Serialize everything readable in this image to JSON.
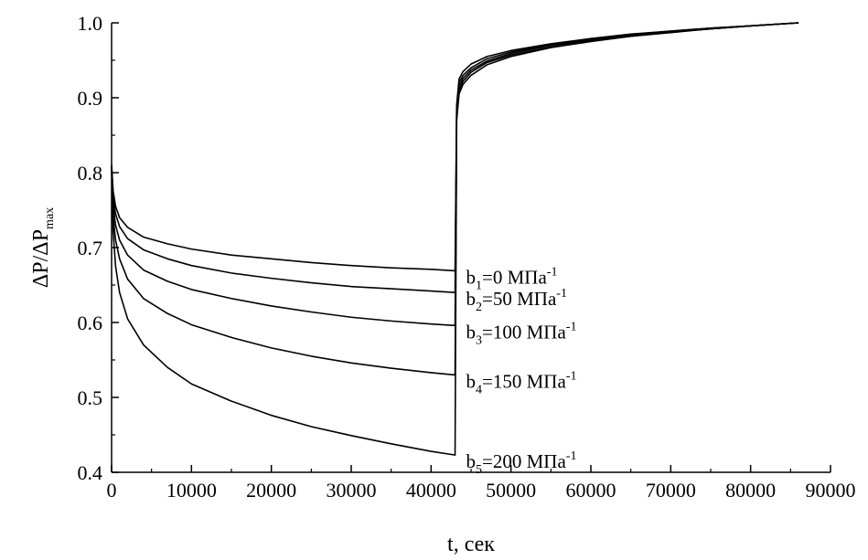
{
  "chart_data": {
    "type": "line",
    "title": "",
    "xlabel": "t, сек",
    "ylabel": {
      "main": "ΔP/ΔP",
      "sub": "max"
    },
    "xlim": [
      0,
      90000
    ],
    "ylim": [
      0.4,
      1.0
    ],
    "x_ticks": [
      0,
      10000,
      20000,
      30000,
      40000,
      50000,
      60000,
      70000,
      80000,
      90000
    ],
    "y_ticks": [
      0.4,
      0.5,
      0.6,
      0.7,
      0.8,
      0.9,
      1.0
    ],
    "y_tick_labels": [
      "0.4",
      "0.5",
      "0.6",
      "0.7",
      "0.8",
      "0.9",
      "1.0"
    ],
    "grid": false,
    "line_color": "#000000",
    "series": [
      {
        "label": {
          "base": "b",
          "index": "1",
          "text": "=0 МПа",
          "exp": "-1"
        },
        "points": [
          [
            0,
            0.81
          ],
          [
            200,
            0.775
          ],
          [
            500,
            0.755
          ],
          [
            1000,
            0.74
          ],
          [
            2000,
            0.727
          ],
          [
            4000,
            0.714
          ],
          [
            7000,
            0.705
          ],
          [
            10000,
            0.698
          ],
          [
            15000,
            0.69
          ],
          [
            20000,
            0.685
          ],
          [
            25000,
            0.68
          ],
          [
            30000,
            0.676
          ],
          [
            35000,
            0.673
          ],
          [
            40000,
            0.671
          ],
          [
            43000,
            0.669
          ],
          [
            43200,
            0.89
          ],
          [
            43500,
            0.925
          ],
          [
            44000,
            0.935
          ],
          [
            45000,
            0.945
          ],
          [
            47000,
            0.955
          ],
          [
            50000,
            0.963
          ],
          [
            55000,
            0.972
          ],
          [
            60000,
            0.979
          ],
          [
            65000,
            0.985
          ],
          [
            70000,
            0.989
          ],
          [
            75000,
            0.993
          ],
          [
            80000,
            0.996
          ],
          [
            86000,
            1.0
          ]
        ]
      },
      {
        "label": {
          "base": "b",
          "index": "2",
          "text": "=50 МПа",
          "exp": "-1"
        },
        "points": [
          [
            0,
            0.81
          ],
          [
            200,
            0.765
          ],
          [
            500,
            0.745
          ],
          [
            1000,
            0.728
          ],
          [
            2000,
            0.712
          ],
          [
            4000,
            0.697
          ],
          [
            7000,
            0.685
          ],
          [
            10000,
            0.676
          ],
          [
            15000,
            0.666
          ],
          [
            20000,
            0.659
          ],
          [
            25000,
            0.653
          ],
          [
            30000,
            0.648
          ],
          [
            35000,
            0.645
          ],
          [
            40000,
            0.642
          ],
          [
            43000,
            0.64
          ],
          [
            43200,
            0.885
          ],
          [
            43500,
            0.92
          ],
          [
            44000,
            0.93
          ],
          [
            45000,
            0.94
          ],
          [
            47000,
            0.952
          ],
          [
            50000,
            0.961
          ],
          [
            55000,
            0.971
          ],
          [
            60000,
            0.978
          ],
          [
            65000,
            0.984
          ],
          [
            70000,
            0.989
          ],
          [
            75000,
            0.993
          ],
          [
            80000,
            0.996
          ],
          [
            86000,
            1.0
          ]
        ]
      },
      {
        "label": {
          "base": "b",
          "index": "3",
          "text": "=100 МПа",
          "exp": "-1"
        },
        "points": [
          [
            0,
            0.81
          ],
          [
            200,
            0.755
          ],
          [
            500,
            0.73
          ],
          [
            1000,
            0.71
          ],
          [
            2000,
            0.69
          ],
          [
            4000,
            0.67
          ],
          [
            7000,
            0.655
          ],
          [
            10000,
            0.644
          ],
          [
            15000,
            0.632
          ],
          [
            20000,
            0.622
          ],
          [
            25000,
            0.614
          ],
          [
            30000,
            0.607
          ],
          [
            35000,
            0.602
          ],
          [
            40000,
            0.598
          ],
          [
            43000,
            0.596
          ],
          [
            43200,
            0.88
          ],
          [
            43500,
            0.915
          ],
          [
            44000,
            0.926
          ],
          [
            45000,
            0.937
          ],
          [
            47000,
            0.949
          ],
          [
            50000,
            0.959
          ],
          [
            55000,
            0.97
          ],
          [
            60000,
            0.977
          ],
          [
            65000,
            0.983
          ],
          [
            70000,
            0.988
          ],
          [
            75000,
            0.992
          ],
          [
            80000,
            0.996
          ],
          [
            86000,
            1.0
          ]
        ]
      },
      {
        "label": {
          "base": "b",
          "index": "4",
          "text": "=150 МПа",
          "exp": "-1"
        },
        "points": [
          [
            0,
            0.81
          ],
          [
            200,
            0.74
          ],
          [
            500,
            0.71
          ],
          [
            1000,
            0.685
          ],
          [
            2000,
            0.658
          ],
          [
            4000,
            0.632
          ],
          [
            7000,
            0.612
          ],
          [
            10000,
            0.597
          ],
          [
            15000,
            0.58
          ],
          [
            20000,
            0.566
          ],
          [
            25000,
            0.555
          ],
          [
            30000,
            0.546
          ],
          [
            35000,
            0.539
          ],
          [
            40000,
            0.533
          ],
          [
            43000,
            0.53
          ],
          [
            43200,
            0.875
          ],
          [
            43500,
            0.91
          ],
          [
            44000,
            0.922
          ],
          [
            45000,
            0.934
          ],
          [
            47000,
            0.947
          ],
          [
            50000,
            0.957
          ],
          [
            55000,
            0.968
          ],
          [
            60000,
            0.976
          ],
          [
            65000,
            0.982
          ],
          [
            70000,
            0.988
          ],
          [
            75000,
            0.992
          ],
          [
            80000,
            0.996
          ],
          [
            86000,
            1.0
          ]
        ]
      },
      {
        "label": {
          "base": "b",
          "index": "5",
          "text": "=200 МПа",
          "exp": "-1"
        },
        "points": [
          [
            0,
            0.81
          ],
          [
            200,
            0.72
          ],
          [
            500,
            0.675
          ],
          [
            1000,
            0.64
          ],
          [
            2000,
            0.605
          ],
          [
            4000,
            0.57
          ],
          [
            7000,
            0.54
          ],
          [
            10000,
            0.518
          ],
          [
            15000,
            0.495
          ],
          [
            20000,
            0.476
          ],
          [
            25000,
            0.461
          ],
          [
            30000,
            0.449
          ],
          [
            35000,
            0.438
          ],
          [
            40000,
            0.428
          ],
          [
            43000,
            0.423
          ],
          [
            43200,
            0.87
          ],
          [
            43500,
            0.905
          ],
          [
            44000,
            0.918
          ],
          [
            45000,
            0.93
          ],
          [
            47000,
            0.944
          ],
          [
            50000,
            0.955
          ],
          [
            55000,
            0.967
          ],
          [
            60000,
            0.975
          ],
          [
            65000,
            0.982
          ],
          [
            70000,
            0.987
          ],
          [
            75000,
            0.992
          ],
          [
            80000,
            0.996
          ],
          [
            86000,
            1.0
          ]
        ]
      }
    ]
  }
}
